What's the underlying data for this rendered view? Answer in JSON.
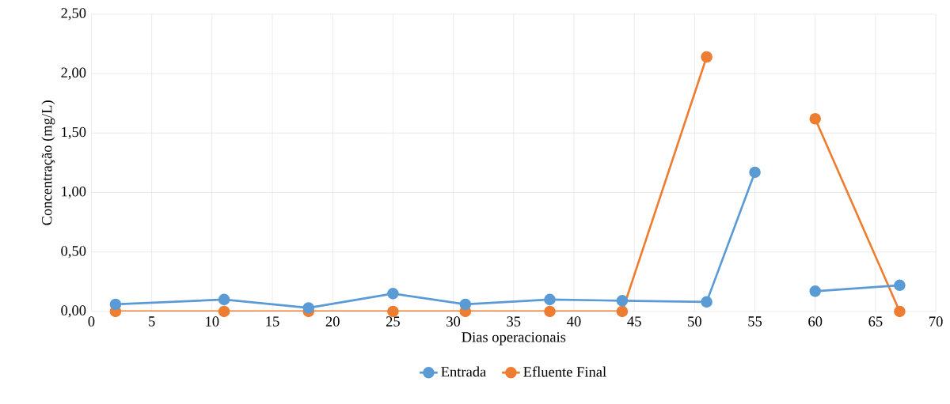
{
  "chart_data": {
    "type": "line",
    "xlabel": "Dias operacionais",
    "ylabel": "Concentração (mg/L)",
    "x": [
      2,
      11,
      18,
      25,
      31,
      38,
      44,
      51,
      55,
      58,
      60,
      67
    ],
    "series": [
      {
        "name": "Entrada",
        "color": "#5b9bd5",
        "values": [
          0.06,
          0.1,
          0.03,
          0.15,
          0.06,
          0.1,
          0.09,
          0.08,
          1.17,
          null,
          0.17,
          0.22
        ]
      },
      {
        "name": "Efluente Final",
        "color": "#ed7d31",
        "values": [
          0,
          0,
          0,
          0,
          0,
          0,
          0,
          2.14,
          null,
          null,
          1.62,
          0
        ]
      }
    ],
    "xlim": [
      0,
      70
    ],
    "xticks": [
      0,
      5,
      10,
      15,
      20,
      25,
      30,
      35,
      40,
      45,
      50,
      55,
      60,
      65,
      70
    ],
    "ylim": [
      0,
      2.5
    ],
    "yticks": [
      {
        "value": 0,
        "label": "0,00"
      },
      {
        "value": 0.5,
        "label": "0,50"
      },
      {
        "value": 1,
        "label": "1,00"
      },
      {
        "value": 1.5,
        "label": "1,50"
      },
      {
        "value": 2,
        "label": "2,00"
      },
      {
        "value": 2.5,
        "label": "2,50"
      }
    ],
    "grid": true,
    "legend": "bottom",
    "marker": "circle",
    "line_style": "solid"
  }
}
